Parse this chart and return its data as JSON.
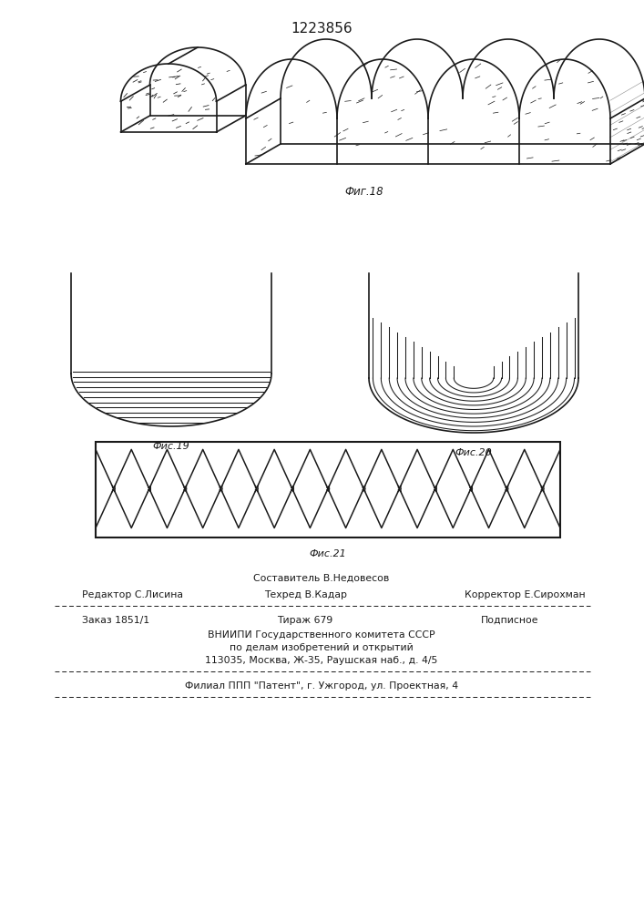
{
  "patent_number": "1223856",
  "fig18_label": "Фиг.18",
  "fig19_label": "Фис.19",
  "fig20_label": "Фис.20",
  "fig21_label": "Фис.21",
  "footer_sestavitel": "Составитель В.Недовесов",
  "footer_redaktor": "Редактор С.Лисина",
  "footer_tehred": "Техред В.Кадар",
  "footer_korrektor": "Корректор Е.Сирохман",
  "footer_zakaz": "Заказ 1851/1",
  "footer_tirazh": "Тираж 679",
  "footer_podpisnoe": "Подписное",
  "footer_vniipи": "ВНИИПИ Государственного комитета СССР",
  "footer_dela": "по делам изобретений и открытий",
  "footer_address": "113035, Москва, Ж-35, Раушская наб., д. 4/5",
  "footer_filial": "Филиал ППП \"Патент\", г. Ужгород, ул. Проектная, 4",
  "bg_color": "#ffffff",
  "line_color": "#1a1a1a"
}
